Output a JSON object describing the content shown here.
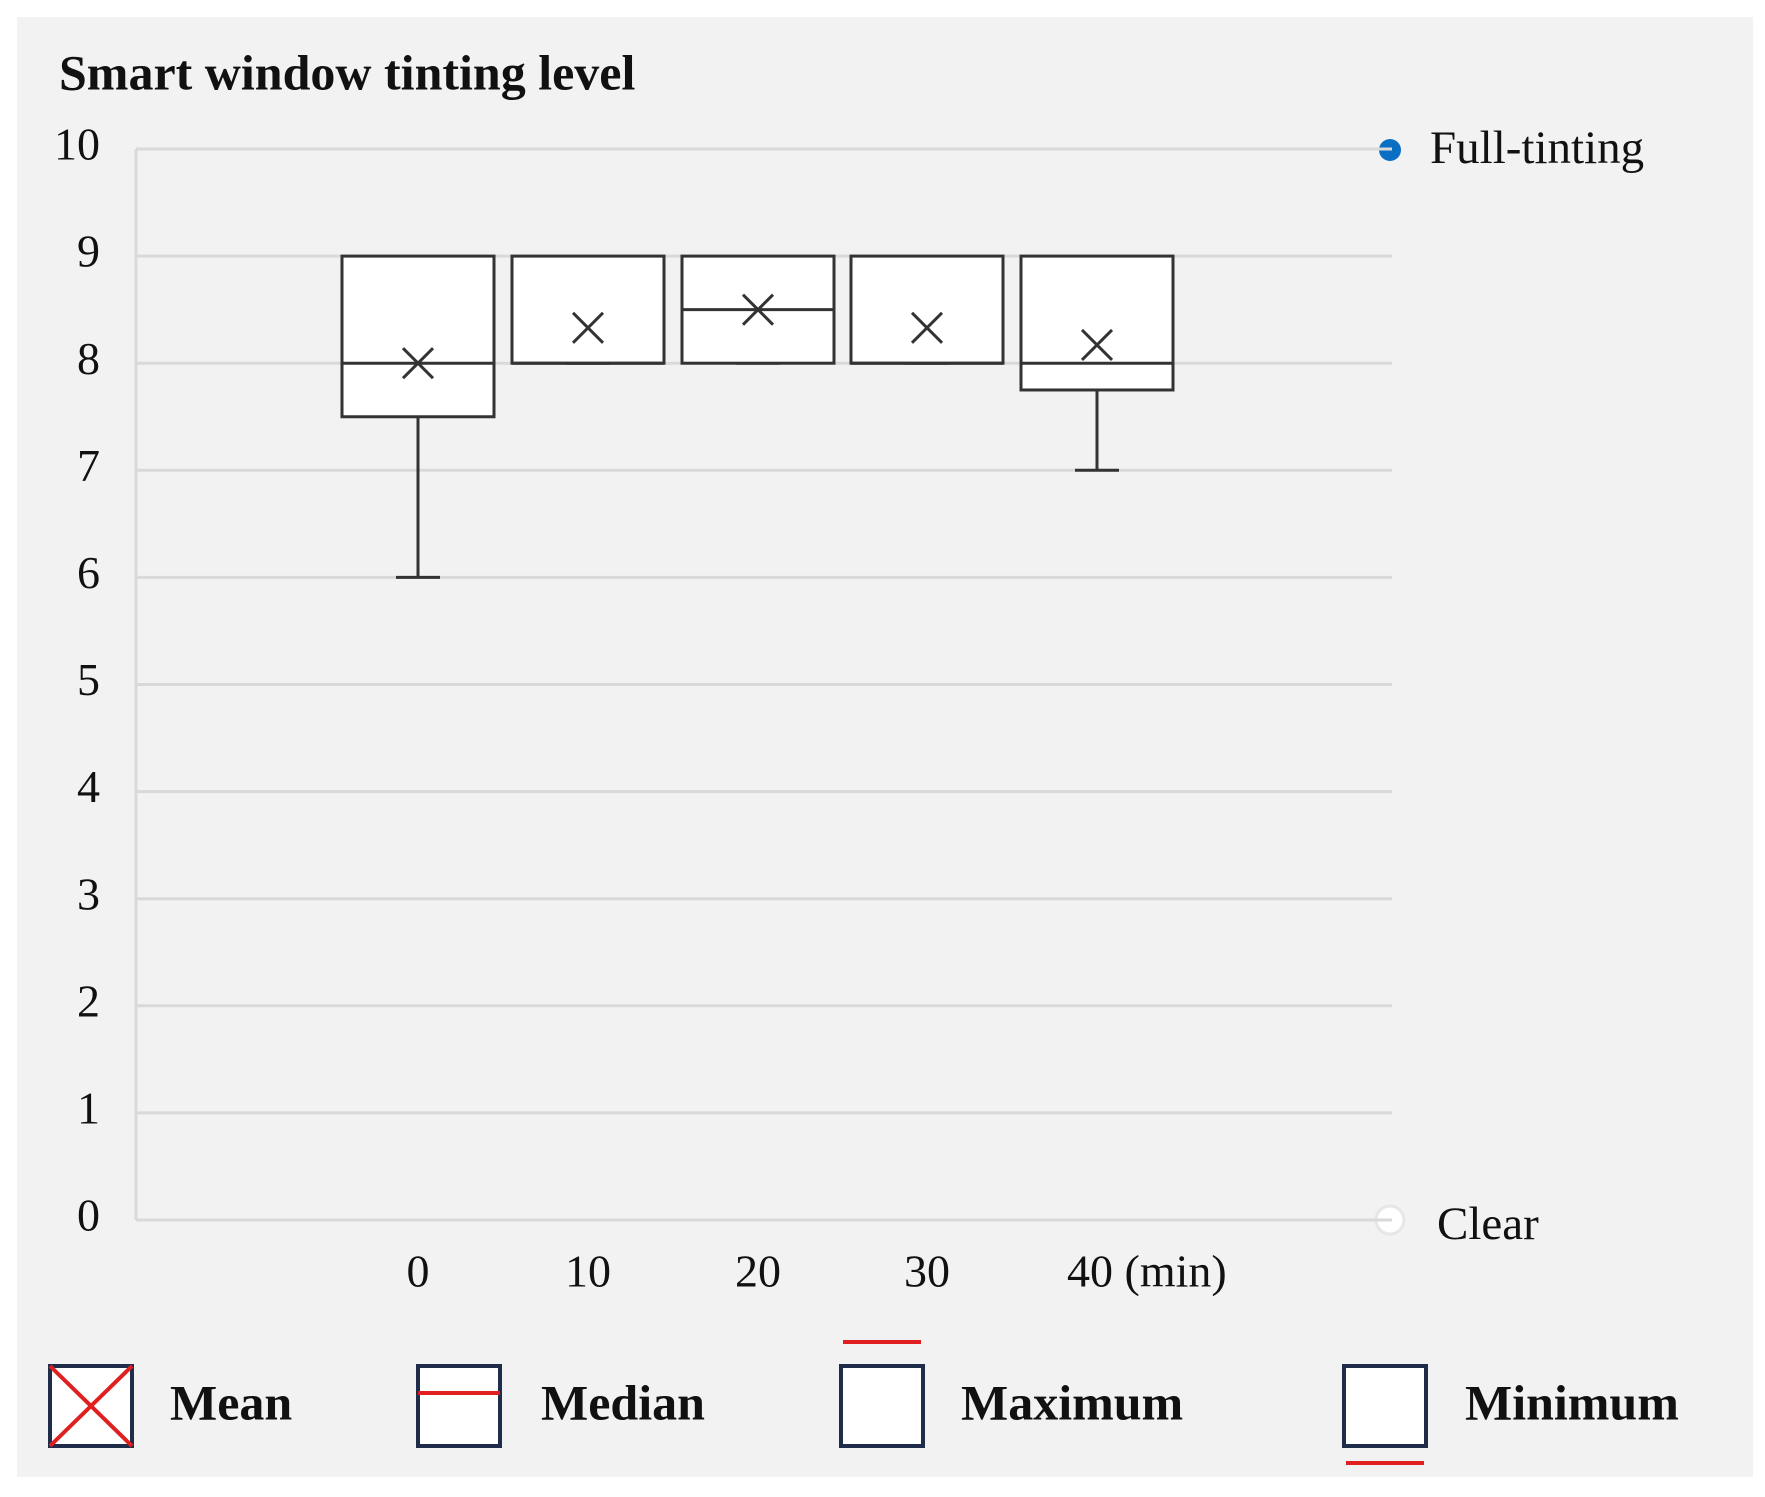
{
  "chart_data": {
    "type": "box",
    "title": "Smart window tinting level",
    "categories": [
      "0",
      "10",
      "20",
      "30",
      "40 (min)"
    ],
    "boxes": [
      {
        "min": 6,
        "q1": 7.5,
        "median": 8,
        "q3": 9,
        "max": 9,
        "mean": 8
      },
      {
        "min": 8,
        "q1": 8,
        "median": 8,
        "q3": 9,
        "max": 9,
        "mean": 8.33
      },
      {
        "min": 8,
        "q1": 8,
        "median": 8.5,
        "q3": 9,
        "max": 9,
        "mean": 8.5
      },
      {
        "min": 8,
        "q1": 8,
        "median": 8,
        "q3": 9,
        "max": 9,
        "mean": 8.33
      },
      {
        "min": 7,
        "q1": 7.75,
        "median": 8,
        "q3": 9,
        "max": 9,
        "mean": 8.17
      }
    ],
    "ylim": [
      0,
      10
    ],
    "yticks": [
      0,
      1,
      2,
      3,
      4,
      5,
      6,
      7,
      8,
      9,
      10
    ],
    "grid": true,
    "annotations": [
      "Full-tinting",
      "Clear"
    ],
    "legend_labels": [
      "Mean",
      "Median",
      "Maximum",
      "Minimum"
    ]
  }
}
